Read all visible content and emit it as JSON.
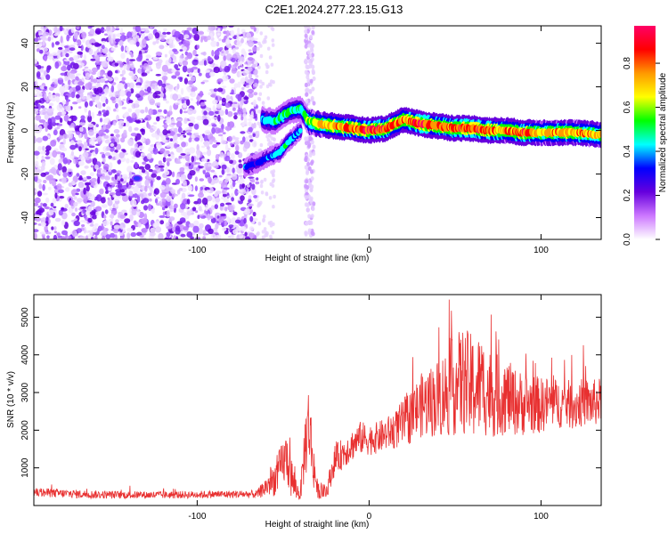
{
  "title": "C2E1.2024.277.23.15.G13",
  "colors": {
    "snr_line": "#e83030",
    "axis": "#000000",
    "spectrogram_background": "#ffffff"
  },
  "chart_data": [
    {
      "type": "heatmap",
      "panel": "spectrogram",
      "xlabel": "Height of straight line (km)",
      "ylabel": "Frequency (Hz)",
      "xlim": [
        -195,
        135
      ],
      "ylim": [
        -50,
        48
      ],
      "x_ticks": [
        -100,
        0,
        100
      ],
      "y_ticks": [
        -40,
        -20,
        0,
        20,
        40
      ],
      "colorbar": {
        "label": "Normalized spectral amplitude",
        "range": [
          0,
          0.97
        ],
        "ticks": [
          0.0,
          0.2,
          0.4,
          0.6,
          0.8
        ],
        "tick_labels": [
          "0.0",
          "0.2",
          "0.4",
          "0.6",
          "0.8"
        ],
        "colormap": [
          "#ffffff",
          "#cc77ff",
          "#6600dd",
          "#0000ff",
          "#00ffff",
          "#00ff00",
          "#ffff00",
          "#ff9900",
          "#ff0000",
          "#ff0066"
        ]
      },
      "noise_region": {
        "x": [
          -195,
          -65
        ],
        "y": [
          -50,
          48
        ],
        "level": 0.2
      },
      "secondary_noise_band": {
        "x": [
          -37,
          -32
        ],
        "y": [
          -50,
          48
        ],
        "level": 0.12
      },
      "ridge": {
        "x": [
          -62,
          -55,
          -50,
          -45,
          -40,
          -35,
          -30,
          -20,
          -10,
          0,
          10,
          15,
          20,
          25,
          30,
          40,
          50,
          60,
          70,
          80,
          90,
          100,
          110,
          120,
          135
        ],
        "y": [
          5,
          4,
          7,
          9,
          10,
          4,
          3,
          2,
          1,
          0,
          1,
          3,
          5,
          4,
          3,
          2,
          1,
          1,
          0,
          0,
          -1,
          -1,
          -1,
          -1,
          -2
        ],
        "level": [
          0.4,
          0.45,
          0.5,
          0.5,
          0.45,
          0.6,
          0.7,
          0.75,
          0.8,
          0.85,
          0.8,
          0.8,
          0.75,
          0.85,
          0.9,
          0.8,
          0.8,
          0.85,
          0.8,
          0.75,
          0.8,
          0.7,
          0.75,
          0.75,
          0.7
        ]
      },
      "lower_branch": {
        "x": [
          -72,
          -65,
          -58,
          -52,
          -48,
          -44,
          -40
        ],
        "y": [
          -17,
          -15,
          -12,
          -10,
          -6,
          -3,
          0
        ],
        "level": [
          0.35,
          0.3,
          0.35,
          0.4,
          0.45,
          0.4,
          0.35
        ]
      },
      "isolated_feature": {
        "x": -135,
        "y": -22,
        "level": 0.25
      }
    },
    {
      "type": "line",
      "panel": "snr",
      "xlabel": "Height of straight line (km)",
      "ylabel": "SNR (10 * v/v)",
      "xlim": [
        -195,
        135
      ],
      "ylim": [
        0,
        5600
      ],
      "x_ticks": [
        -100,
        0,
        100
      ],
      "y_ticks": [
        1000,
        2000,
        3000,
        4000,
        5000
      ],
      "series": [
        {
          "color": "#e83030",
          "x": [
            -195,
            -180,
            -160,
            -140,
            -120,
            -100,
            -80,
            -65,
            -55,
            -48,
            -45,
            -42,
            -40,
            -37,
            -35,
            -33,
            -30,
            -25,
            -20,
            -15,
            -10,
            -5,
            0,
            5,
            10,
            15,
            20,
            25,
            30,
            35,
            40,
            45,
            50,
            55,
            60,
            65,
            70,
            75,
            80,
            85,
            90,
            95,
            100,
            105,
            110,
            115,
            120,
            125,
            130,
            135
          ],
          "y": [
            350,
            320,
            290,
            280,
            280,
            290,
            300,
            300,
            700,
            1300,
            700,
            400,
            300,
            1700,
            2200,
            1300,
            400,
            350,
            1200,
            1400,
            1600,
            1800,
            1750,
            1800,
            1900,
            2000,
            2200,
            2400,
            2650,
            2750,
            2850,
            3000,
            3200,
            3300,
            3100,
            3200,
            3000,
            2900,
            2900,
            2750,
            2700,
            2700,
            2650,
            2750,
            2700,
            2700,
            2650,
            2750,
            2700,
            2800
          ],
          "envelope_amplitude": [
            120,
            120,
            110,
            100,
            100,
            100,
            100,
            110,
            450,
            700,
            600,
            250,
            180,
            1000,
            1100,
            800,
            220,
            200,
            400,
            420,
            420,
            440,
            420,
            420,
            450,
            500,
            650,
            750,
            850,
            950,
            1050,
            1200,
            1350,
            1450,
            1450,
            1350,
            1200,
            1100,
            1000,
            900,
            850,
            800,
            750,
            700,
            650,
            650,
            650,
            650,
            650,
            600
          ]
        }
      ]
    }
  ]
}
